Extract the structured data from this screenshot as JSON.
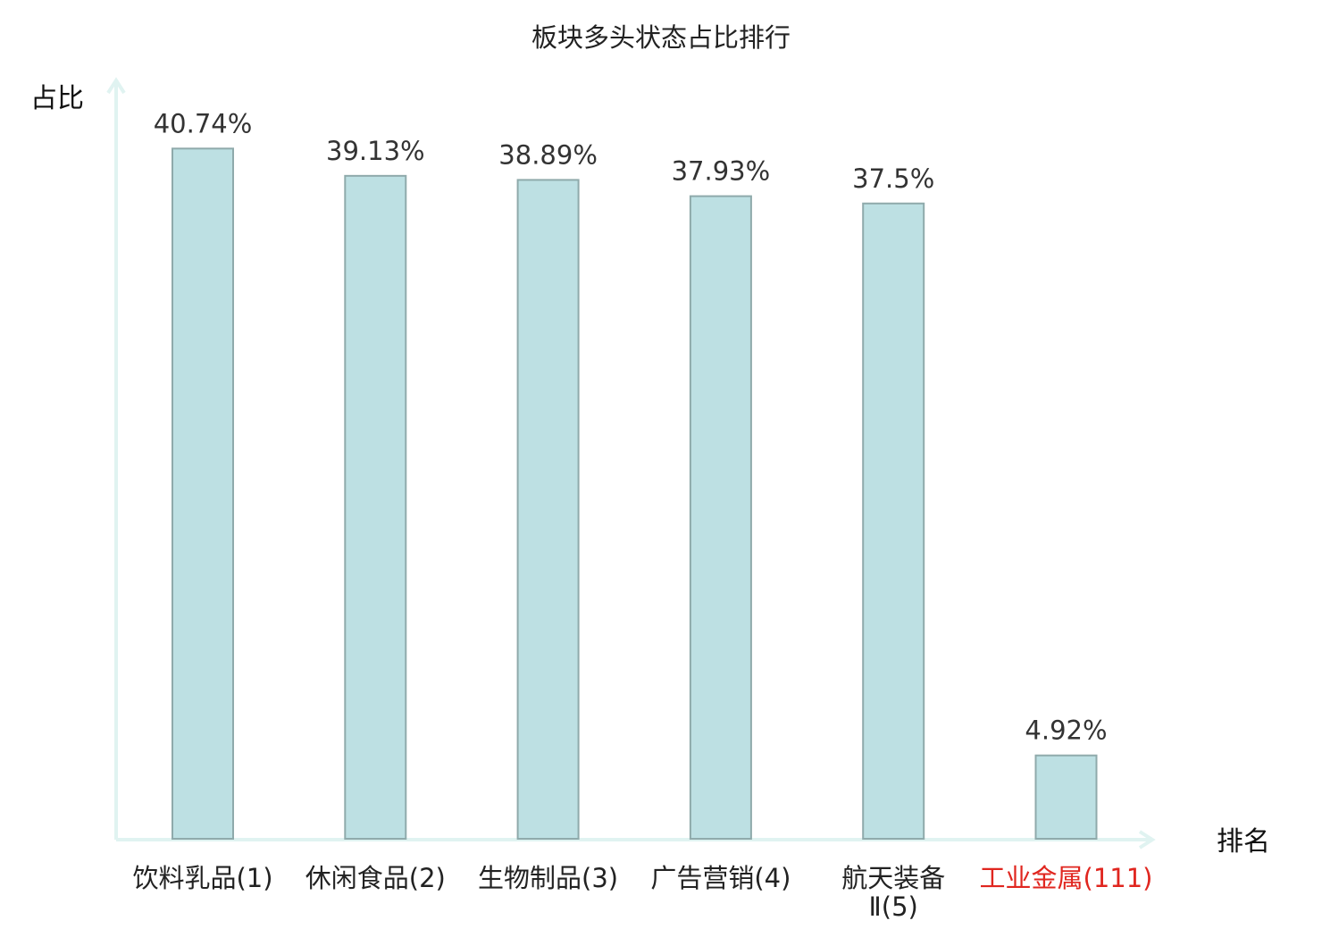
{
  "chart_data": {
    "type": "bar",
    "title": "板块多头状态占比排行",
    "ylabel": "占比",
    "xlabel": "排名",
    "ylim": [
      0,
      44.5
    ],
    "grid": false,
    "categories": [
      [
        "饮料乳品(1)"
      ],
      [
        "休闲食品(2)"
      ],
      [
        "生物制品(3)"
      ],
      [
        "广告营销(4)"
      ],
      [
        "航天装备",
        "Ⅱ(5)"
      ],
      [
        "工业金属(111)"
      ]
    ],
    "values": [
      40.74,
      39.13,
      38.89,
      37.93,
      37.5,
      4.92
    ],
    "value_labels": [
      "40.74%",
      "39.13%",
      "38.89%",
      "37.93%",
      "37.5%",
      "4.92%"
    ],
    "highlight_index": 5,
    "colors": {
      "bar_fill": "#bde0e3",
      "bar_stroke": "#8faaab",
      "axis": "#e0f3f1",
      "highlight_label": "#e0261f"
    }
  }
}
